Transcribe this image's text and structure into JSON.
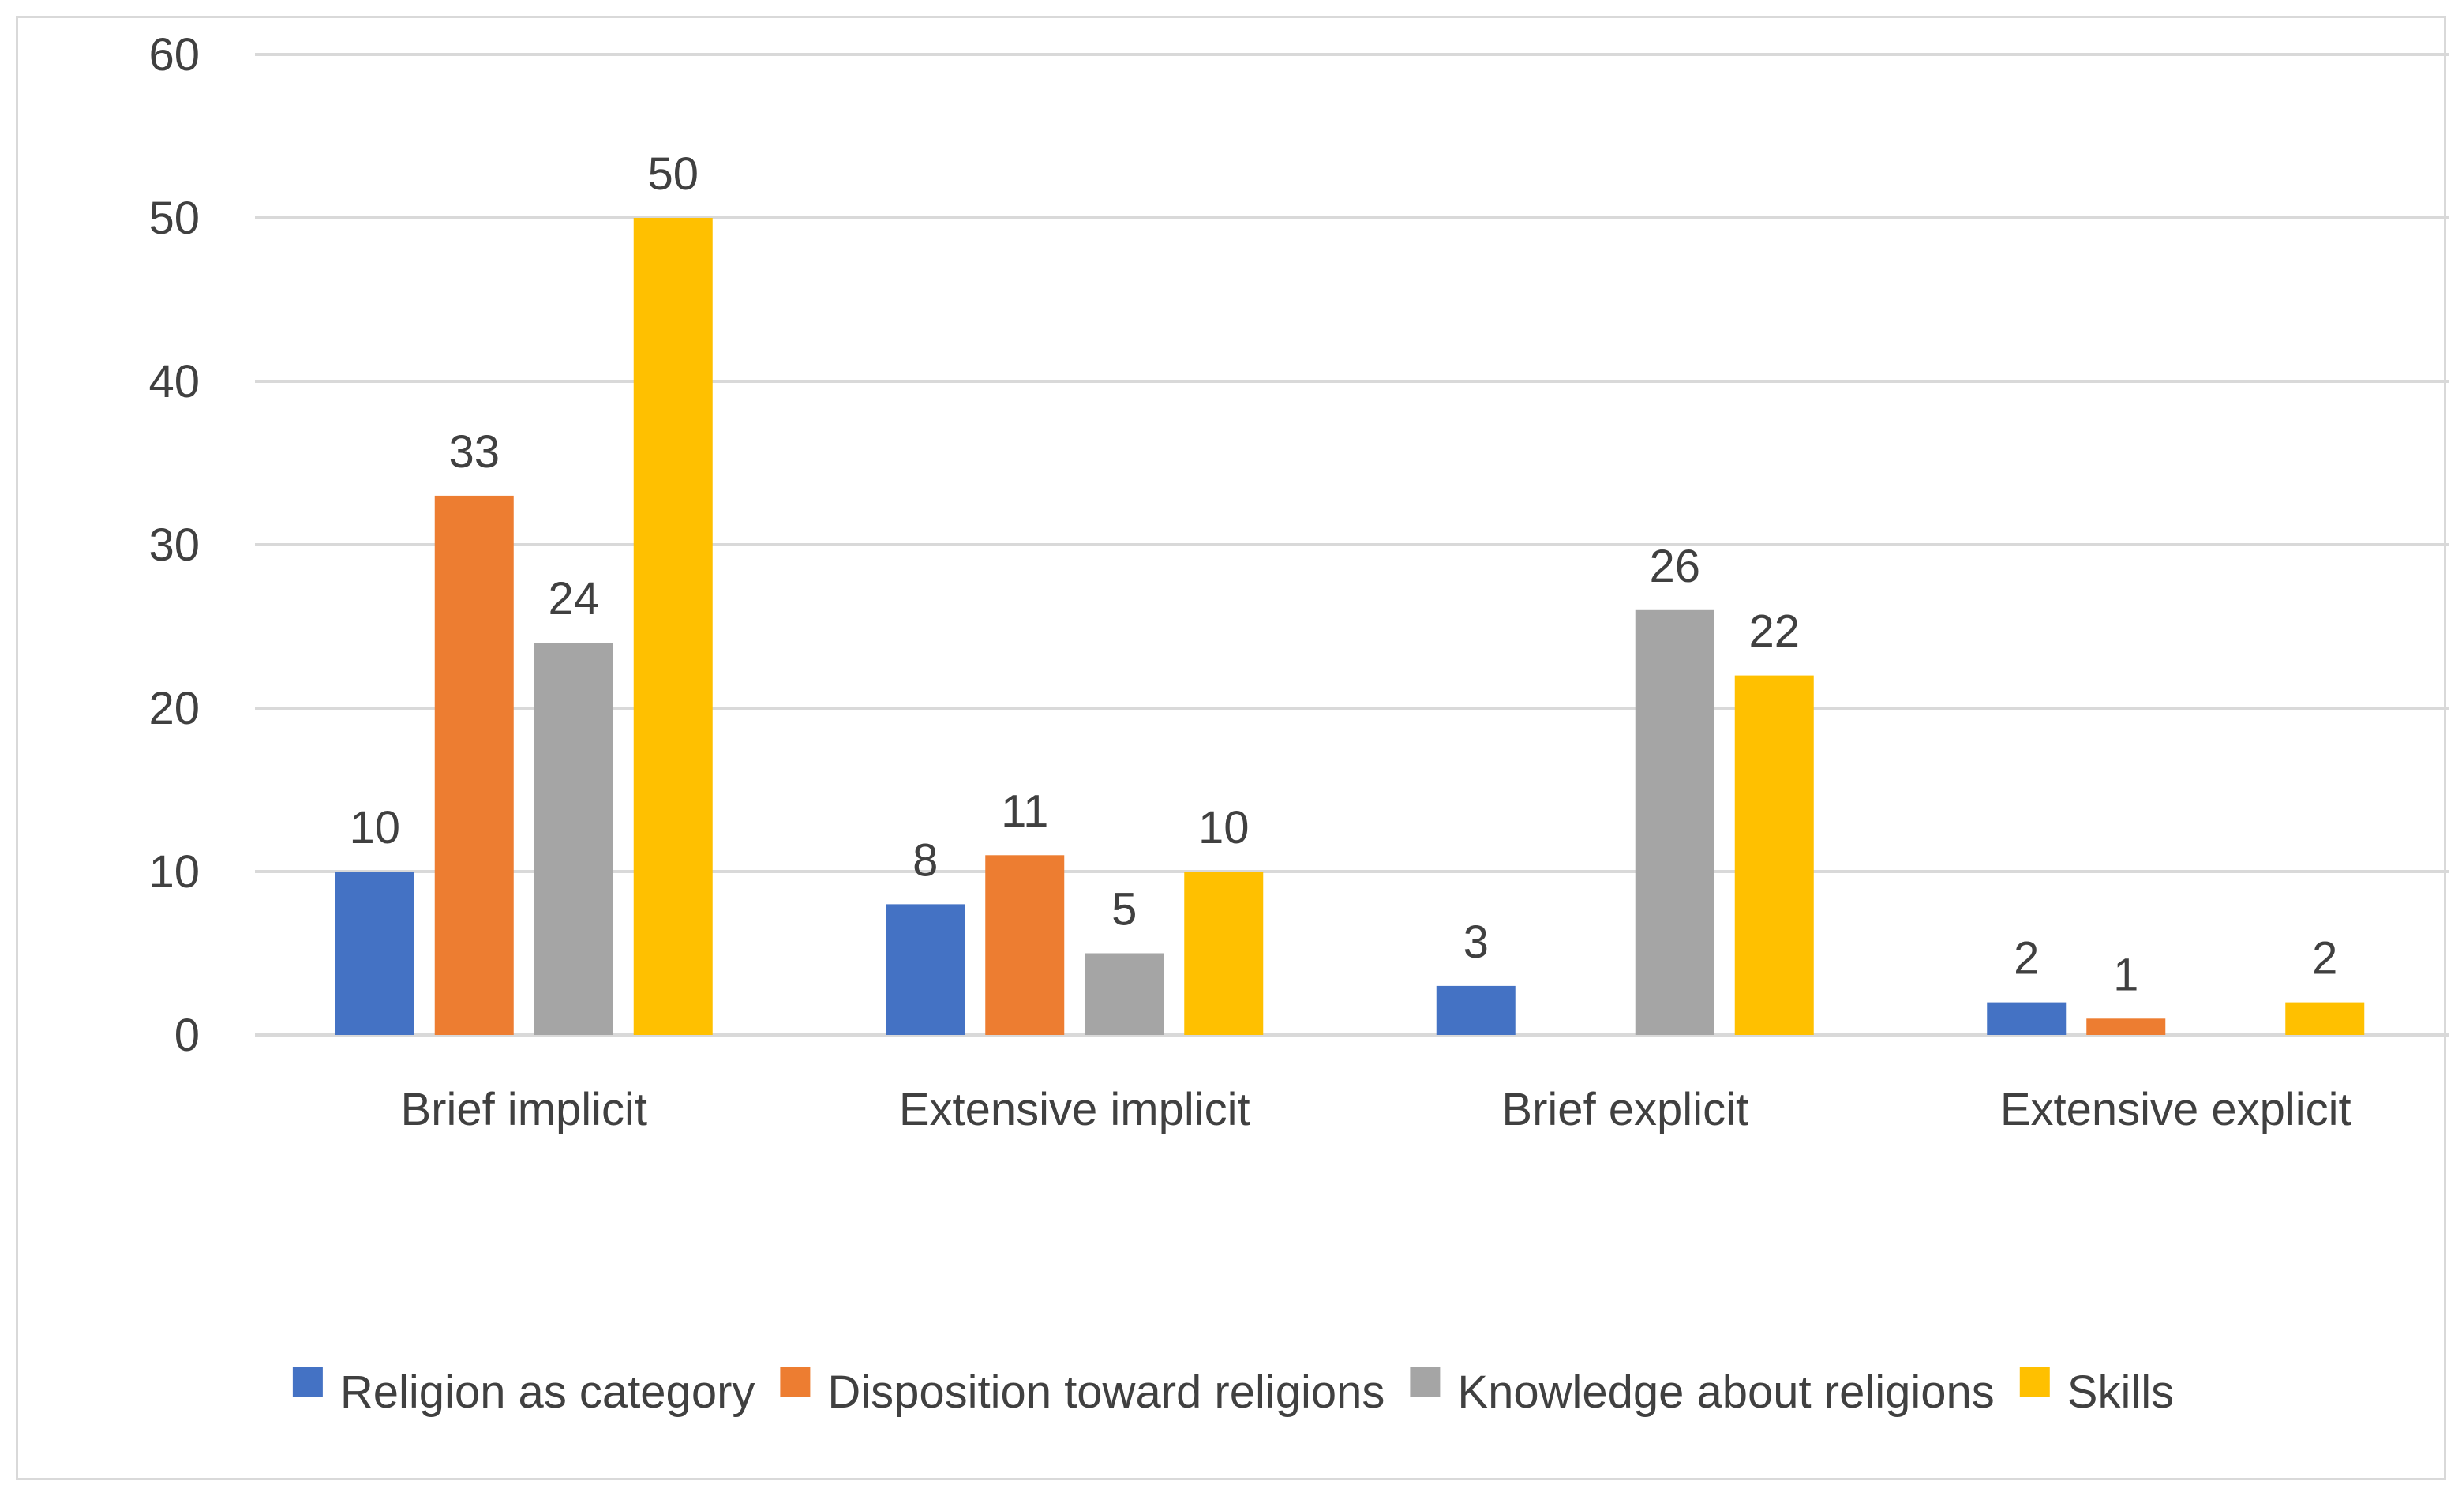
{
  "chart_data": {
    "type": "bar",
    "title": "",
    "xlabel": "",
    "ylabel": "",
    "ylim": [
      0,
      60
    ],
    "yticks": [
      0,
      10,
      20,
      30,
      40,
      50,
      60
    ],
    "grid": true,
    "legend_position": "bottom",
    "categories": [
      "Brief implicit",
      "Extensive implicit",
      "Brief explicit",
      "Extensive explicit"
    ],
    "series": [
      {
        "name": "Religion as category",
        "color": "#4472C4",
        "values": [
          10,
          8,
          3,
          2
        ]
      },
      {
        "name": "Disposition toward religions",
        "color": "#ED7D31",
        "values": [
          33,
          11,
          null,
          1
        ]
      },
      {
        "name": "Knowledge about religions",
        "color": "#A5A5A5",
        "values": [
          24,
          5,
          26,
          null
        ]
      },
      {
        "name": "Skills",
        "color": "#FFC000",
        "values": [
          50,
          10,
          22,
          2
        ]
      }
    ]
  }
}
